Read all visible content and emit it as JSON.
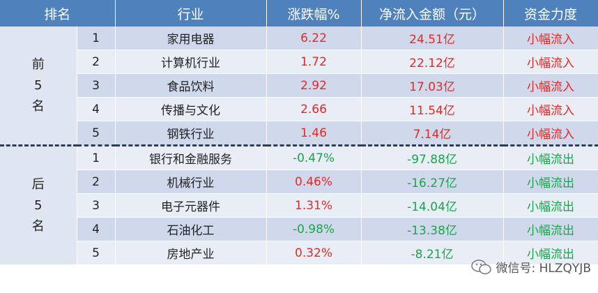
{
  "header": {
    "columns": [
      "排名",
      "行业",
      "涨跌幅%",
      "净流入金额（元）",
      "资金力度"
    ]
  },
  "colors": {
    "up": "#e02b27",
    "down": "#1da34c"
  },
  "groups": [
    {
      "label": "前5名",
      "rows": [
        [
          "1",
          "家用电器",
          "6.22",
          "24.51亿",
          "小幅流入"
        ],
        [
          "2",
          "计算机行业",
          "1.72",
          "22.12亿",
          "小幅流入"
        ],
        [
          "3",
          "食品饮料",
          "2.92",
          "17.03亿",
          "小幅流入"
        ],
        [
          "4",
          "传播与文化",
          "2.66",
          "11.54亿",
          "小幅流入"
        ],
        [
          "5",
          "钢铁行业",
          "1.46",
          "7.14亿",
          "小幅流入"
        ]
      ]
    },
    {
      "label": "后5名",
      "rows": [
        [
          "1",
          "银行和金融服务",
          "-0.47%",
          "-97.88亿",
          "小幅流出"
        ],
        [
          "2",
          "机械行业",
          "0.46%",
          "-16.27亿",
          "小幅流出"
        ],
        [
          "3",
          "电子元器件",
          "1.31%",
          "-14.04亿",
          "小幅流出"
        ],
        [
          "4",
          "石油化工",
          "-0.98%",
          "-13.38亿",
          "小幅流出"
        ],
        [
          "5",
          "房地产业",
          "0.32%",
          "-8.21亿",
          "小幅流出"
        ]
      ]
    }
  ],
  "footer": {
    "watermark": "微信号: HLZQYJB"
  }
}
